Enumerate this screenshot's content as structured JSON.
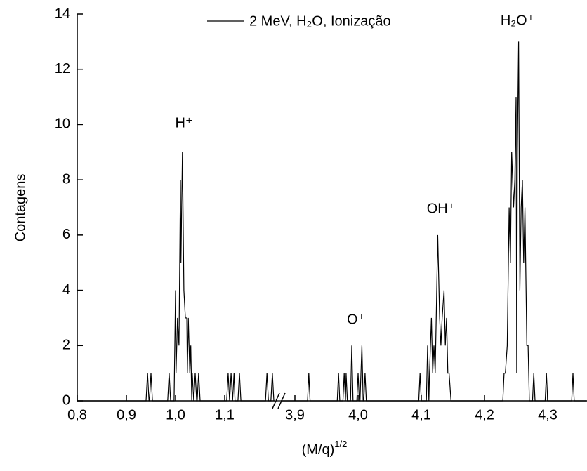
{
  "chart_data": {
    "type": "line",
    "xlabel": "(M/q)",
    "xlabel_exponent": "1/2",
    "ylabel": "Contagens",
    "annotations": [
      "H⁺",
      "O⁺",
      "OH⁺",
      "H₂O⁺"
    ],
    "legend": "upper center",
    "xlims": [
      [
        0.8,
        1.2
      ],
      [
        3.87,
        4.36
      ]
    ],
    "xticks": [
      {
        "value": 0.8,
        "label": "0,8"
      },
      {
        "value": 0.9,
        "label": "0,9"
      },
      {
        "value": 1.0,
        "label": "1,0"
      },
      {
        "value": 1.1,
        "label": "1,1"
      },
      {
        "value": 3.9,
        "label": "3,9"
      },
      {
        "value": 4.0,
        "label": "4,0"
      },
      {
        "value": 4.1,
        "label": "4,1"
      },
      {
        "value": 4.2,
        "label": "4,2"
      },
      {
        "value": 4.3,
        "label": "4,3"
      }
    ],
    "ylim": [
      0,
      14
    ],
    "yticks": [
      0,
      2,
      4,
      6,
      8,
      10,
      12,
      14
    ],
    "x": [
      0.8,
      0.94,
      0.943,
      0.946,
      0.947,
      0.95,
      0.953,
      0.984,
      0.987,
      0.99,
      0.997,
      1.0,
      1.001,
      1.004,
      1.007,
      1.01,
      1.011,
      1.014,
      1.017,
      1.02,
      1.023,
      1.024,
      1.026,
      1.029,
      1.031,
      1.033,
      1.034,
      1.037,
      1.04,
      1.043,
      1.044,
      1.047,
      1.05,
      1.104,
      1.107,
      1.11,
      1.113,
      1.116,
      1.119,
      1.121,
      1.127,
      1.13,
      1.133,
      1.183,
      1.186,
      1.189,
      1.194,
      1.197,
      1.2,
      null,
      3.87,
      3.92,
      3.922,
      3.924,
      3.967,
      3.969,
      3.971,
      3.976,
      3.978,
      3.98,
      3.981,
      3.983,
      3.988,
      3.99,
      3.992,
      3.998,
      4.0,
      4.002,
      4.003,
      4.006,
      4.008,
      4.009,
      4.011,
      4.013,
      4.096,
      4.098,
      4.1,
      4.108,
      4.11,
      4.112,
      4.113,
      4.116,
      4.118,
      4.12,
      4.122,
      4.126,
      4.129,
      4.131,
      4.133,
      4.136,
      4.138,
      4.14,
      4.142,
      4.144,
      4.147,
      4.229,
      4.231,
      4.233,
      4.236,
      4.239,
      4.241,
      4.243,
      4.246,
      4.248,
      4.25,
      4.251,
      4.252,
      4.254,
      4.256,
      4.258,
      4.26,
      4.262,
      4.264,
      4.267,
      4.269,
      4.271,
      4.276,
      4.278,
      4.28,
      4.296,
      4.298,
      4.3,
      4.338,
      4.34,
      4.342,
      4.36
    ],
    "series": [
      {
        "name": "2 MeV, H₂O, Ionização",
        "color": "#000000",
        "values": [
          0,
          0,
          1,
          0,
          0,
          1,
          0,
          0,
          1,
          0,
          0,
          4,
          1,
          3,
          2,
          8,
          5,
          9,
          4,
          3,
          3,
          1,
          3,
          1,
          2,
          0,
          1,
          0,
          1,
          0,
          0,
          1,
          0,
          0,
          1,
          0,
          1,
          0,
          1,
          0,
          0,
          1,
          0,
          0,
          1,
          0,
          0,
          1,
          0,
          null,
          0,
          0,
          1,
          0,
          0,
          1,
          0,
          0,
          1,
          0,
          1,
          0,
          0,
          2,
          0,
          0,
          1,
          0,
          0,
          2,
          0,
          0,
          1,
          0,
          0,
          1,
          0,
          0,
          2,
          0,
          1,
          3,
          1,
          2,
          1,
          6,
          3,
          2,
          3,
          4,
          2,
          3,
          1,
          1,
          0,
          0,
          1,
          1,
          2,
          7,
          5,
          9,
          7,
          8,
          11,
          1,
          9,
          13,
          4,
          7,
          8,
          5,
          7,
          2,
          2,
          0,
          0,
          1,
          0,
          0,
          1,
          0,
          0,
          1,
          0,
          0
        ]
      }
    ]
  }
}
